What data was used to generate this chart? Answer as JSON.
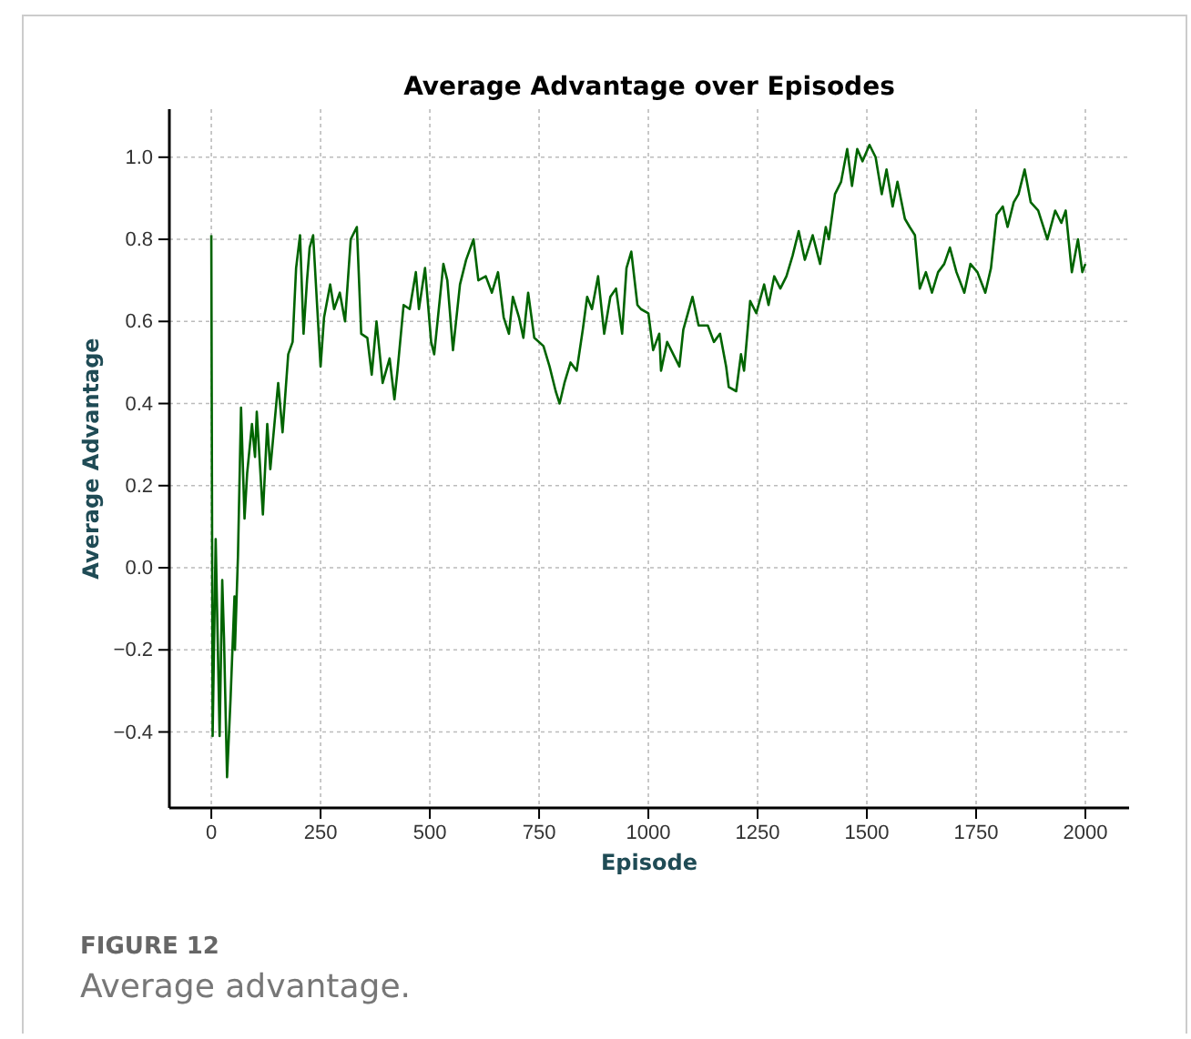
{
  "chart_data": {
    "type": "line",
    "title": "Average Advantage over Episodes",
    "xlabel": "Episode",
    "ylabel": "Average Advantage",
    "annotations": [
      "FIGURE 12",
      "Average advantage."
    ],
    "xlim": [
      -96,
      2100
    ],
    "xticks": [
      0,
      250,
      500,
      750,
      1000,
      1250,
      1500,
      1750,
      2000
    ],
    "ylim": [
      -0.585,
      1.117
    ],
    "yticks": [
      {
        "value": -0.4,
        "label": "−0.4"
      },
      {
        "value": -0.2,
        "label": "−0.2"
      },
      {
        "value": 0,
        "label": "0.0"
      },
      0.2,
      0.4,
      0.6,
      0.8,
      {
        "value": 1,
        "label": "1.0"
      }
    ],
    "grid": true,
    "line_style": "solid",
    "marker": "none",
    "series": [
      {
        "color": "#006400",
        "x": [
          0,
          3,
          10,
          19,
          25,
          29,
          36,
          44,
          53,
          54,
          61,
          68,
          76,
          82,
          93,
          100,
          104,
          118,
          128,
          135,
          153,
          163,
          176,
          186,
          194,
          203,
          211,
          219,
          225,
          233,
          242,
          250,
          258,
          272,
          281,
          294,
          306,
          319,
          333,
          343,
          357,
          367,
          378,
          392,
          408,
          419,
          426,
          440,
          454,
          468,
          475,
          489,
          503,
          510,
          531,
          540,
          553,
          569,
          583,
          600,
          611,
          628,
          642,
          656,
          669,
          681,
          690,
          704,
          714,
          725,
          739,
          760,
          774,
          788,
          797,
          808,
          822,
          836,
          850,
          860,
          871,
          885,
          899,
          913,
          926,
          940,
          950,
          961,
          975,
          983,
          1000,
          1011,
          1025,
          1029,
          1043,
          1057,
          1071,
          1080,
          1101,
          1115,
          1136,
          1150,
          1164,
          1178,
          1184,
          1201,
          1212,
          1219,
          1233,
          1247,
          1265,
          1275,
          1288,
          1302,
          1316,
          1330,
          1344,
          1358,
          1376,
          1393,
          1406,
          1413,
          1427,
          1441,
          1455,
          1466,
          1478,
          1490,
          1506,
          1520,
          1534,
          1545,
          1559,
          1570,
          1587,
          1598,
          1610,
          1621,
          1635,
          1649,
          1663,
          1677,
          1690,
          1705,
          1723,
          1737,
          1753,
          1771,
          1784,
          1797,
          1811,
          1822,
          1836,
          1847,
          1861,
          1875,
          1892,
          1913,
          1931,
          1945,
          1955,
          1969,
          1983,
          1993,
          2000
        ],
        "values": [
          0.81,
          -0.41,
          0.07,
          -0.41,
          -0.03,
          -0.17,
          -0.51,
          -0.32,
          -0.07,
          -0.2,
          0.03,
          0.39,
          0.12,
          0.23,
          0.35,
          0.27,
          0.38,
          0.13,
          0.35,
          0.24,
          0.45,
          0.33,
          0.52,
          0.55,
          0.73,
          0.81,
          0.57,
          0.7,
          0.78,
          0.81,
          0.64,
          0.49,
          0.61,
          0.69,
          0.63,
          0.67,
          0.6,
          0.8,
          0.83,
          0.57,
          0.56,
          0.47,
          0.6,
          0.45,
          0.51,
          0.41,
          0.48,
          0.64,
          0.63,
          0.72,
          0.63,
          0.73,
          0.55,
          0.52,
          0.74,
          0.7,
          0.53,
          0.69,
          0.75,
          0.8,
          0.7,
          0.71,
          0.67,
          0.72,
          0.61,
          0.57,
          0.66,
          0.61,
          0.56,
          0.67,
          0.56,
          0.54,
          0.49,
          0.43,
          0.4,
          0.45,
          0.5,
          0.48,
          0.58,
          0.66,
          0.63,
          0.71,
          0.57,
          0.66,
          0.68,
          0.57,
          0.73,
          0.77,
          0.64,
          0.63,
          0.62,
          0.53,
          0.57,
          0.48,
          0.55,
          0.52,
          0.49,
          0.58,
          0.66,
          0.59,
          0.59,
          0.55,
          0.57,
          0.49,
          0.44,
          0.43,
          0.52,
          0.48,
          0.65,
          0.62,
          0.69,
          0.64,
          0.71,
          0.68,
          0.71,
          0.76,
          0.82,
          0.75,
          0.81,
          0.74,
          0.83,
          0.8,
          0.91,
          0.94,
          1.02,
          0.93,
          1.02,
          0.99,
          1.03,
          1.0,
          0.91,
          0.97,
          0.88,
          0.94,
          0.85,
          0.83,
          0.81,
          0.68,
          0.72,
          0.67,
          0.72,
          0.74,
          0.78,
          0.72,
          0.67,
          0.74,
          0.72,
          0.67,
          0.73,
          0.86,
          0.88,
          0.83,
          0.89,
          0.91,
          0.97,
          0.89,
          0.87,
          0.8,
          0.87,
          0.84,
          0.87,
          0.72,
          0.8,
          0.72,
          0.74
        ]
      }
    ]
  }
}
